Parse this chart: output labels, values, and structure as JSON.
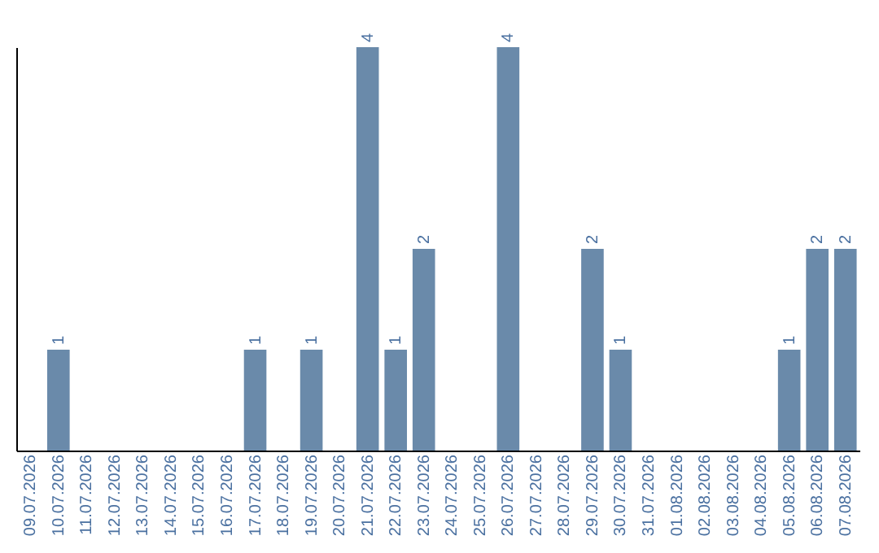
{
  "chart_data": {
    "type": "bar",
    "categories": [
      "09.07.2026",
      "10.07.2026",
      "11.07.2026",
      "12.07.2026",
      "13.07.2026",
      "14.07.2026",
      "15.07.2026",
      "16.07.2026",
      "17.07.2026",
      "18.07.2026",
      "19.07.2026",
      "20.07.2026",
      "21.07.2026",
      "22.07.2026",
      "23.07.2026",
      "24.07.2026",
      "25.07.2026",
      "26.07.2026",
      "27.07.2026",
      "28.07.2026",
      "29.07.2026",
      "30.07.2026",
      "31.07.2026",
      "01.08.2026",
      "02.08.2026",
      "03.08.2026",
      "04.08.2026",
      "05.08.2026",
      "06.08.2026",
      "07.08.2026"
    ],
    "values": [
      0,
      1,
      0,
      0,
      0,
      0,
      0,
      0,
      1,
      0,
      1,
      0,
      4,
      1,
      2,
      0,
      0,
      4,
      0,
      0,
      2,
      1,
      0,
      0,
      0,
      0,
      0,
      1,
      2,
      2
    ],
    "value_labels": [
      null,
      "1",
      null,
      null,
      null,
      null,
      null,
      null,
      "1",
      null,
      "1",
      null,
      "4",
      "1",
      "2",
      null,
      null,
      "4",
      null,
      null,
      "2",
      "1",
      null,
      null,
      null,
      null,
      null,
      "1",
      "2",
      "2"
    ],
    "color": "#6a8aaa",
    "tick_labels": "x",
    "grid": false
  }
}
